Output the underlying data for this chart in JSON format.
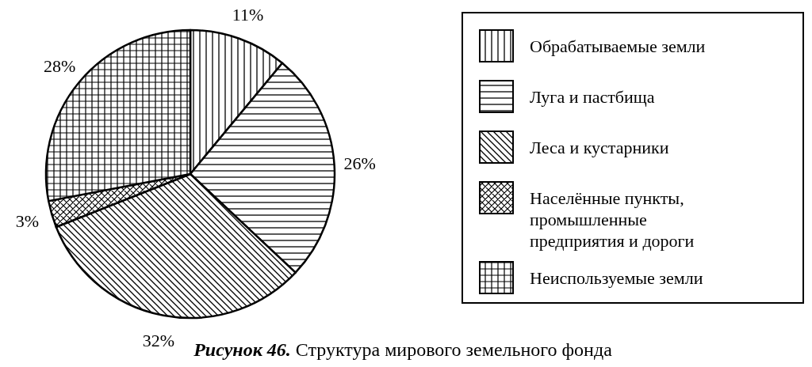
{
  "chart_data": {
    "type": "pie",
    "title": "Рисунок 46. Структура мирового земельного фонда",
    "categories": [
      "Обрабатываемые земли",
      "Луга и пастбища",
      "Леса и кустарники",
      "Населённые пункты, промышленные предприятия и дороги",
      "Неиспользуемые земли"
    ],
    "values": [
      11,
      26,
      32,
      3,
      28
    ],
    "value_labels": [
      "11%",
      "26%",
      "32%",
      "3%",
      "28%"
    ],
    "legend": "right"
  }
}
